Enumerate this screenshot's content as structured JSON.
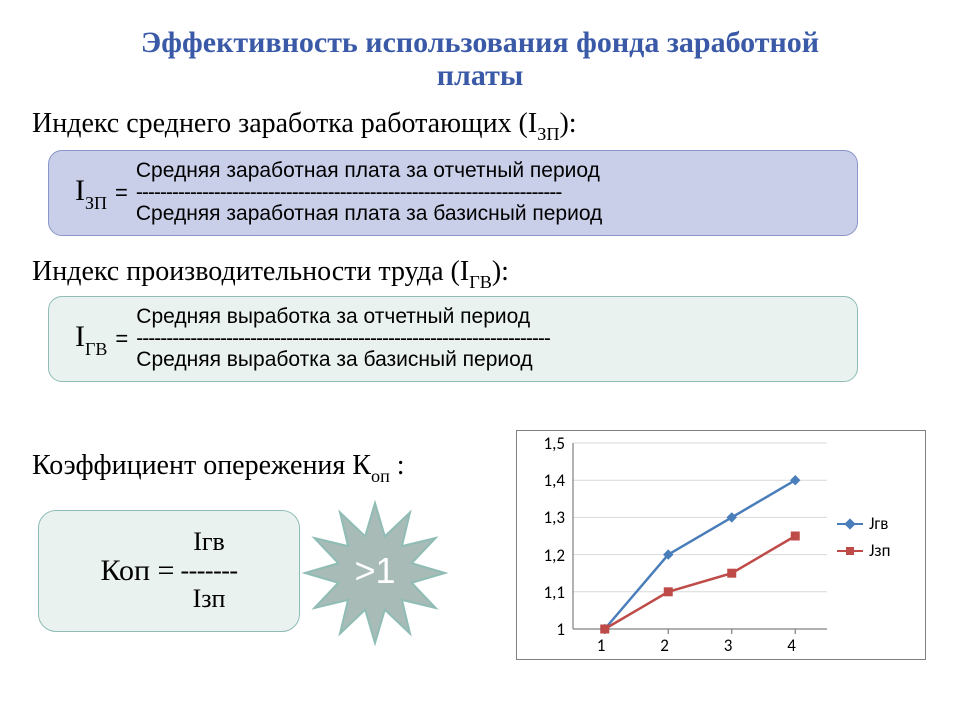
{
  "title_line1": "Эффективность использования фонда заработной",
  "title_line2": "платы",
  "title_color": "#3a5aa8",
  "heading1": "Индекс среднего заработка работающих (I",
  "heading1_sub": "ЗП",
  "heading1_tail": "):",
  "box1": {
    "bg": "#c9cfe8",
    "border": "#8a96c9",
    "label_main": "I",
    "label_sub": "ЗП",
    "eq": "=",
    "numerator": "Средняя заработная плата за отчетный период",
    "dashes": "-----------------------------------------------------------------------",
    "denominator": "Средняя заработная плата за базисный период"
  },
  "heading2": "Индекс производительности труда (I",
  "heading2_sub": "ГВ",
  "heading2_tail": "):",
  "box2": {
    "bg": "#eaf2f0",
    "border": "#8fbcb5",
    "label_main": "I",
    "label_sub": "ГВ",
    "eq": "=",
    "numerator": "Средняя выработка за отчетный период",
    "dashes": "---------------------------------------------------------------------",
    "denominator": "Средняя выработка за базисный период"
  },
  "heading3": "Коэффициент опережения К",
  "heading3_sub": "оп",
  "heading3_tail": " :",
  "kop": {
    "bg": "#eaf2f0",
    "border": "#8fbcb5",
    "left": "Коп =",
    "numer": "Iгв",
    "dashes": "-------",
    "denom": "Iзп"
  },
  "starburst": {
    "fill": "#a8bbb6",
    "stroke": "#8fbcb5",
    "text": ">1",
    "text_color": "#ffffff",
    "text_fontsize": 36
  },
  "chart": {
    "type": "line",
    "border_color": "#7f7f7f",
    "background": "#ffffff",
    "axis_color": "#808080",
    "grid_color": "#d9d9d9",
    "ylim": [
      1.0,
      1.5
    ],
    "ytick_step": 0.1,
    "y_labels": [
      "1,5",
      "1,4",
      "1,3",
      "1,2",
      "1,1",
      "1"
    ],
    "x_labels": [
      "1",
      "2",
      "3",
      "4"
    ],
    "series": [
      {
        "name": "Jгв",
        "color": "#4a7ebb",
        "marker": "diamond",
        "marker_size": 9,
        "line_width": 2.5,
        "values": [
          1.0,
          1.2,
          1.3,
          1.4
        ]
      },
      {
        "name": "Jзп",
        "color": "#be4b48",
        "marker": "square",
        "marker_size": 8,
        "line_width": 2.5,
        "values": [
          1.0,
          1.1,
          1.15,
          1.25
        ]
      }
    ],
    "legend_prefix": "—",
    "label_fontsize": 17,
    "label_fontfamily": "Calibri"
  }
}
